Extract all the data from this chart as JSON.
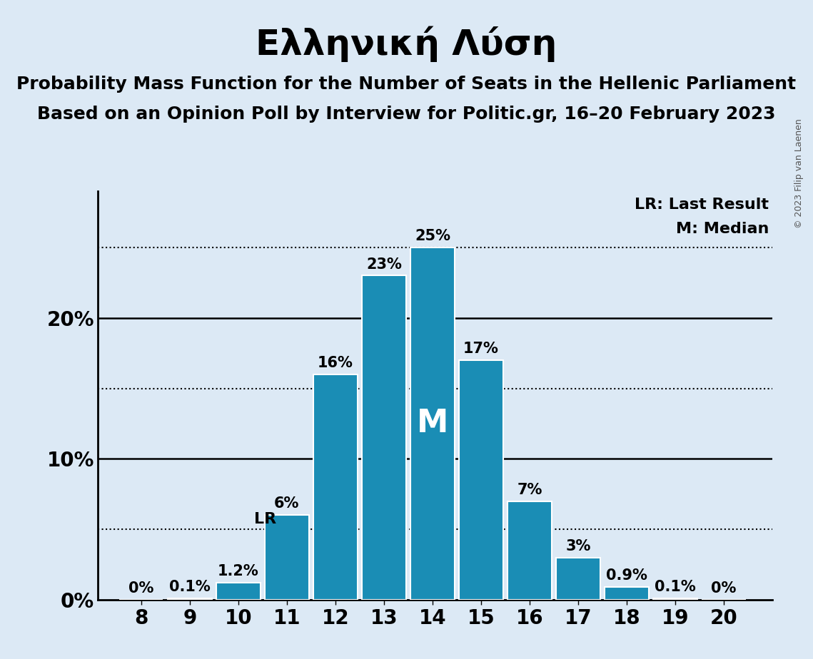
{
  "title": "Ελληνική Λύση",
  "subtitle1": "Probability Mass Function for the Number of Seats in the Hellenic Parliament",
  "subtitle2": "Based on an Opinion Poll by Interview for Politic.gr, 16–20 February 2023",
  "copyright": "© 2023 Filip van Laenen",
  "seats": [
    8,
    9,
    10,
    11,
    12,
    13,
    14,
    15,
    16,
    17,
    18,
    19,
    20
  ],
  "probabilities": [
    0.0,
    0.1,
    1.2,
    6.0,
    16.0,
    23.0,
    25.0,
    17.0,
    7.0,
    3.0,
    0.9,
    0.1,
    0.0
  ],
  "bar_color": "#1a8db5",
  "background_color": "#dce9f5",
  "bar_edge_color": "#ffffff",
  "lr_seat": 11,
  "lr_value": 5.0,
  "median_seat": 14,
  "yticks": [
    0,
    10,
    20
  ],
  "ytick_labels": [
    "0%",
    "10%",
    "20%"
  ],
  "dotted_lines": [
    5,
    15,
    25
  ],
  "solid_lines": [
    10,
    20
  ],
  "ylim": [
    0,
    29
  ],
  "xlim_left": 7.1,
  "xlim_right": 21.0,
  "ylabel_fontsize": 20,
  "xlabel_fontsize": 20,
  "title_fontsize": 36,
  "subtitle_fontsize": 18,
  "bar_label_fontsize": 15,
  "legend_fontsize": 16,
  "median_label_fontsize": 32,
  "lr_fontsize": 16,
  "copyright_fontsize": 9
}
